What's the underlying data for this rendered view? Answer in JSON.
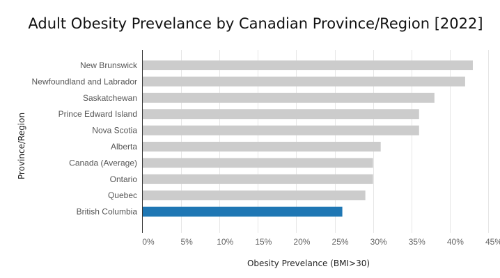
{
  "chart_data": {
    "type": "bar",
    "orientation": "horizontal",
    "title": "Adult Obesity Prevelance by Canadian Province/Region [2022]",
    "xlabel": "Obesity Prevelance (BMI>30)",
    "ylabel": "Province/Region",
    "categories": [
      "New Brunswick",
      "Newfoundland and Labrador",
      "Saskatchewan",
      "Prince Edward Island",
      "Nova Scotia",
      "Alberta",
      "Canada (Average)",
      "Ontario",
      "Quebec",
      "British Columbia"
    ],
    "values": [
      43,
      42,
      38,
      36,
      36,
      31,
      30,
      30,
      29,
      26
    ],
    "xlim": [
      0,
      45
    ],
    "x_ticks": [
      "0%",
      "5%",
      "10%",
      "15%",
      "20%",
      "25%",
      "30%",
      "35%",
      "40%",
      "45%"
    ],
    "grid": true,
    "colors": {
      "default_bar": "#cccccc",
      "highlight_bar": "#1f77b4"
    },
    "highlight_category": "British Columbia"
  }
}
